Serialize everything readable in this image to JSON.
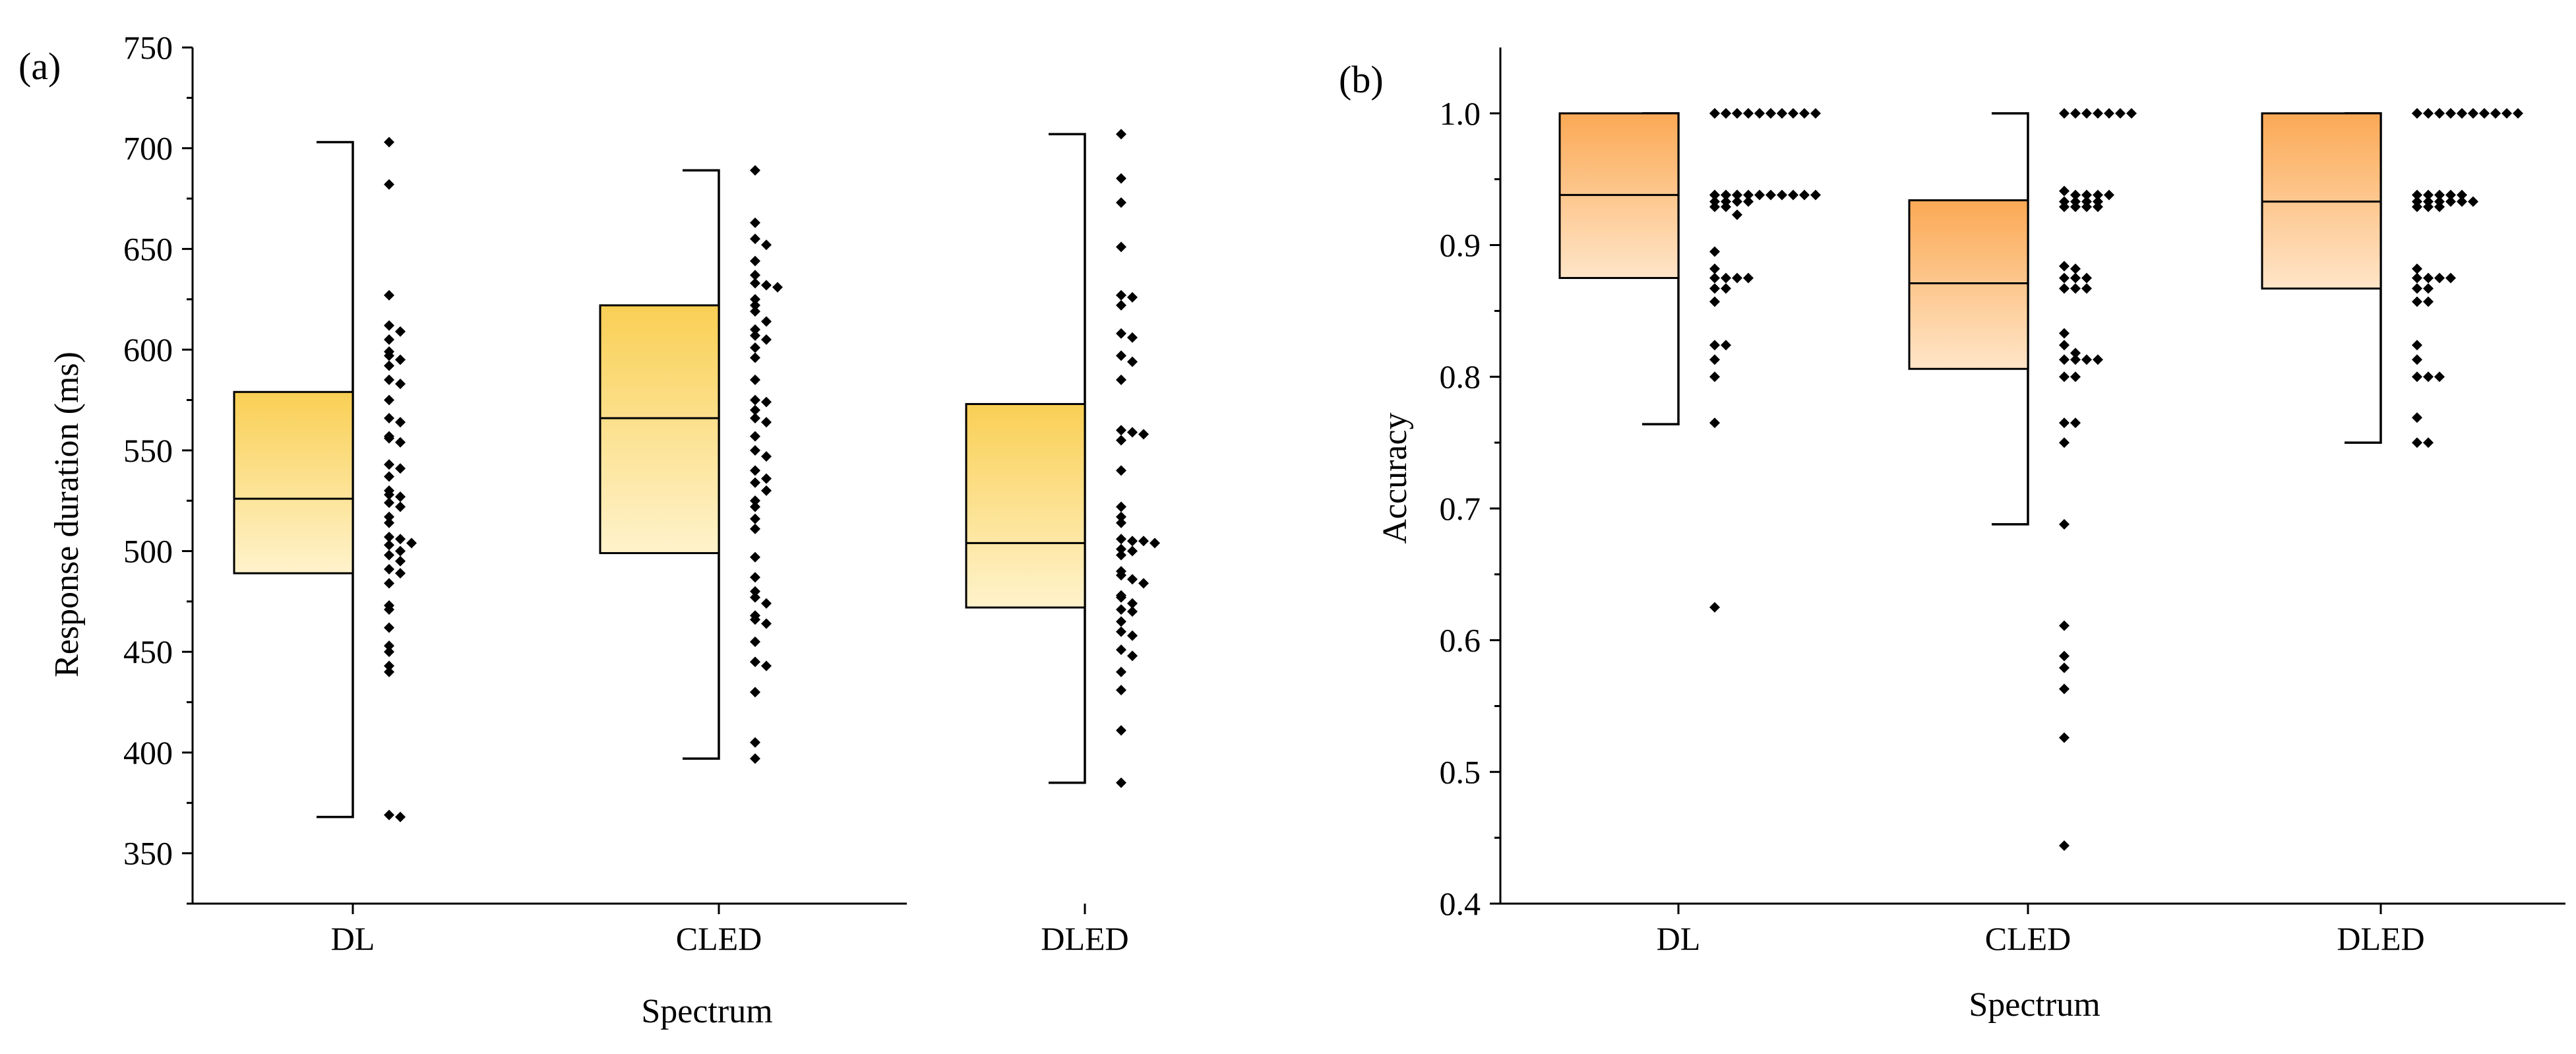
{
  "chart_data": [
    {
      "panel_label": "(a)",
      "type": "box",
      "xlabel": "Spectrum",
      "ylabel": "Response duration (ms)",
      "ylim": [
        325,
        750
      ],
      "yticks": [
        350,
        400,
        450,
        500,
        550,
        600,
        650,
        700,
        750
      ],
      "ytick_labels": [
        "350",
        "400",
        "450",
        "500",
        "550",
        "600",
        "650",
        "700",
        "750"
      ],
      "gradient": [
        "#f9cf54",
        "#fff3cc"
      ],
      "categories": [
        "DL",
        "CLED",
        "DLED"
      ],
      "boxes": [
        {
          "category": "DL",
          "q1": 489,
          "median": 526,
          "q3": 579,
          "whisker_low": 368,
          "whisker_high": 703
        },
        {
          "category": "CLED",
          "q1": 499,
          "median": 566,
          "q3": 622,
          "whisker_low": 397,
          "whisker_high": 689
        },
        {
          "category": "DLED",
          "q1": 472,
          "median": 504,
          "q3": 573,
          "whisker_low": 385,
          "whisker_high": 707
        }
      ],
      "points": [
        [
          703,
          682,
          627,
          612,
          609,
          605,
          599,
          597,
          595,
          592,
          585,
          583,
          575,
          566,
          564,
          557,
          556,
          554,
          543,
          541,
          537,
          530,
          528,
          527,
          524,
          522,
          517,
          514,
          507,
          506,
          504,
          503,
          500,
          498,
          495,
          491,
          489,
          484,
          473,
          471,
          462,
          453,
          450,
          443,
          440,
          369,
          368
        ],
        [
          689,
          663,
          655,
          652,
          644,
          637,
          633,
          632,
          631,
          625,
          622,
          619,
          614,
          610,
          607,
          605,
          601,
          596,
          585,
          575,
          574,
          570,
          566,
          564,
          557,
          550,
          547,
          540,
          536,
          534,
          530,
          525,
          522,
          516,
          511,
          497,
          487,
          480,
          477,
          474,
          468,
          466,
          464,
          455,
          445,
          443,
          430,
          405,
          397
        ],
        [
          707,
          685,
          673,
          651,
          627,
          626,
          622,
          608,
          606,
          597,
          594,
          585,
          560,
          559,
          558,
          555,
          540,
          522,
          517,
          514,
          506,
          505,
          505,
          504,
          501,
          500,
          498,
          490,
          488,
          486,
          484,
          478,
          477,
          474,
          471,
          470,
          465,
          460,
          458,
          451,
          448,
          440,
          431,
          411,
          385
        ]
      ]
    },
    {
      "panel_label": "(b)",
      "type": "box",
      "xlabel": "Spectrum",
      "ylabel": "Accuracy",
      "ylim": [
        0.4,
        1.05
      ],
      "yticks": [
        0.4,
        0.5,
        0.6,
        0.7,
        0.8,
        0.9,
        1.0
      ],
      "ytick_labels": [
        "0.4",
        "0.5",
        "0.6",
        "0.7",
        "0.8",
        "0.9",
        "1.0"
      ],
      "gradient": [
        "#fba955",
        "#ffe5c8"
      ],
      "categories": [
        "DL",
        "CLED",
        "DLED"
      ],
      "boxes": [
        {
          "category": "DL",
          "q1": 0.875,
          "median": 0.938,
          "q3": 1.0,
          "whisker_low": 0.764,
          "whisker_high": 1.0
        },
        {
          "category": "CLED",
          "q1": 0.806,
          "median": 0.871,
          "q3": 0.934,
          "whisker_low": 0.688,
          "whisker_high": 1.0
        },
        {
          "category": "DLED",
          "q1": 0.867,
          "median": 0.933,
          "q3": 1.0,
          "whisker_low": 0.75,
          "whisker_high": 1.0
        }
      ],
      "points": [
        [
          1.0,
          1.0,
          1.0,
          1.0,
          1.0,
          1.0,
          1.0,
          1.0,
          1.0,
          1.0,
          1.0,
          1.0,
          1.0,
          1.0,
          1.0,
          1.0,
          1.0,
          0.938,
          0.938,
          0.938,
          0.938,
          0.938,
          0.938,
          0.938,
          0.938,
          0.938,
          0.938,
          0.938,
          0.938,
          0.938,
          0.933,
          0.933,
          0.933,
          0.933,
          0.929,
          0.929,
          0.923,
          0.895,
          0.882,
          0.875,
          0.875,
          0.875,
          0.875,
          0.867,
          0.867,
          0.857,
          0.824,
          0.824,
          0.813,
          0.8,
          0.765,
          0.625
        ],
        [
          1.0,
          1.0,
          1.0,
          1.0,
          1.0,
          1.0,
          1.0,
          0.941,
          0.938,
          0.938,
          0.938,
          0.938,
          0.933,
          0.933,
          0.933,
          0.933,
          0.929,
          0.929,
          0.929,
          0.929,
          0.884,
          0.882,
          0.875,
          0.875,
          0.875,
          0.867,
          0.867,
          0.867,
          0.833,
          0.824,
          0.818,
          0.813,
          0.813,
          0.813,
          0.813,
          0.8,
          0.8,
          0.765,
          0.765,
          0.75,
          0.688,
          0.611,
          0.588,
          0.579,
          0.563,
          0.526,
          0.444
        ],
        [
          1.0,
          1.0,
          1.0,
          1.0,
          1.0,
          1.0,
          1.0,
          1.0,
          1.0,
          1.0,
          1.0,
          1.0,
          1.0,
          1.0,
          1.0,
          1.0,
          1.0,
          1.0,
          0.938,
          0.938,
          0.938,
          0.938,
          0.938,
          0.933,
          0.933,
          0.933,
          0.933,
          0.933,
          0.933,
          0.929,
          0.929,
          0.929,
          0.882,
          0.875,
          0.875,
          0.875,
          0.875,
          0.867,
          0.867,
          0.857,
          0.857,
          0.824,
          0.813,
          0.8,
          0.8,
          0.8,
          0.769,
          0.75,
          0.75
        ]
      ]
    }
  ]
}
